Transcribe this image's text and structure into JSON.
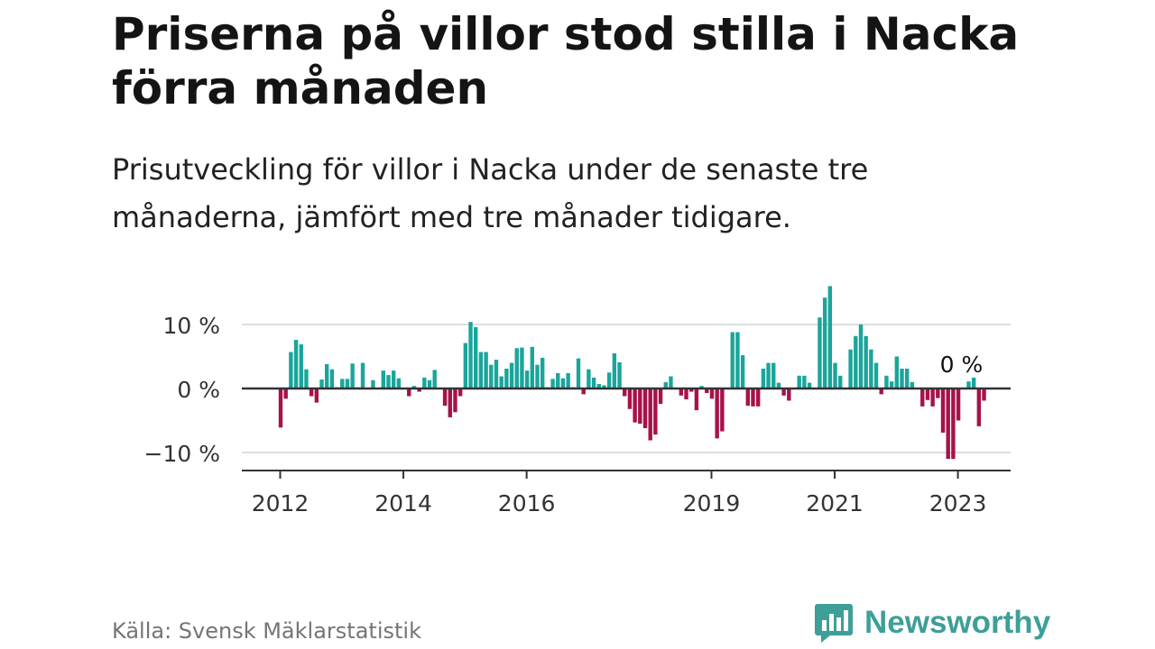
{
  "title": "Priserna på villor stod stilla i Nacka förra månaden",
  "subtitle": "Prisutveckling för villor i Nacka under de senaste tre månaderna, jämfört med tre månader tidigare.",
  "source": "Källa: Svensk Mäklarstatistik",
  "brand": {
    "name": "Newsworthy",
    "icon": "newsworthy-logo-icon",
    "color": "#3d9f97"
  },
  "colors": {
    "positive": "#1aa59b",
    "negative": "#a6124a",
    "grid": "#dddddd",
    "zero_line": "#333333"
  },
  "chart_data": {
    "type": "bar",
    "title": "Prisutveckling för villor i Nacka",
    "xlabel": "",
    "ylabel": "",
    "unit": "%",
    "ylim": [
      -12.5,
      17
    ],
    "y_ticks": [
      {
        "value": 10,
        "label": "10 %"
      },
      {
        "value": 0,
        "label": "0 %"
      },
      {
        "value": -10,
        "label": "−10 %"
      }
    ],
    "x_ticks": [
      {
        "index": 0,
        "label": "2012"
      },
      {
        "index": 24,
        "label": "2014"
      },
      {
        "index": 48,
        "label": "2016"
      },
      {
        "index": 84,
        "label": "2019"
      },
      {
        "index": 108,
        "label": "2021"
      },
      {
        "index": 132,
        "label": "2023"
      }
    ],
    "annotation": {
      "index": 134,
      "label": "0 %"
    },
    "start": "2012-01",
    "values": [
      -6.1,
      -1.6,
      5.7,
      7.6,
      6.9,
      3.0,
      -1.2,
      -2.2,
      1.4,
      3.8,
      3.0,
      0.2,
      1.5,
      1.5,
      3.9,
      0.2,
      4.0,
      0.1,
      1.3,
      0.1,
      2.8,
      2.1,
      2.8,
      1.6,
      0.1,
      -1.2,
      0.4,
      -0.5,
      1.7,
      1.3,
      2.9,
      0.1,
      -2.7,
      -4.5,
      -3.7,
      -1.2,
      7.1,
      10.4,
      9.6,
      5.7,
      5.7,
      3.7,
      4.5,
      1.9,
      3.1,
      4.0,
      6.3,
      6.4,
      2.8,
      6.5,
      3.7,
      4.8,
      0.2,
      1.5,
      2.4,
      1.6,
      2.4,
      0.2,
      4.7,
      -0.9,
      3.0,
      1.7,
      0.7,
      0.5,
      2.5,
      5.5,
      4.1,
      -1.2,
      -3.2,
      -5.3,
      -5.5,
      -6.2,
      -8.1,
      -7.2,
      -2.4,
      1.0,
      1.9,
      0.1,
      -1.1,
      -1.7,
      -0.5,
      -3.4,
      0.4,
      -0.7,
      -1.6,
      -7.8,
      -6.7,
      0.1,
      8.8,
      8.8,
      5.2,
      -2.7,
      -2.8,
      -2.8,
      3.1,
      4.0,
      4.0,
      0.9,
      -1.1,
      -1.9,
      0.1,
      2.0,
      2.0,
      0.9,
      0.1,
      11.1,
      14.2,
      16.0,
      4.0,
      2.0,
      0.1,
      6.1,
      8.2,
      10.0,
      8.2,
      6.1,
      4.0,
      -0.9,
      2.0,
      1.1,
      5.0,
      3.1,
      3.1,
      1.0,
      0.1,
      -2.8,
      -1.8,
      -2.8,
      -1.5,
      -6.9,
      -11.0,
      -11.0,
      -5.0,
      0.1,
      1.1,
      1.7,
      -5.9,
      -1.9,
      0.0
    ]
  }
}
